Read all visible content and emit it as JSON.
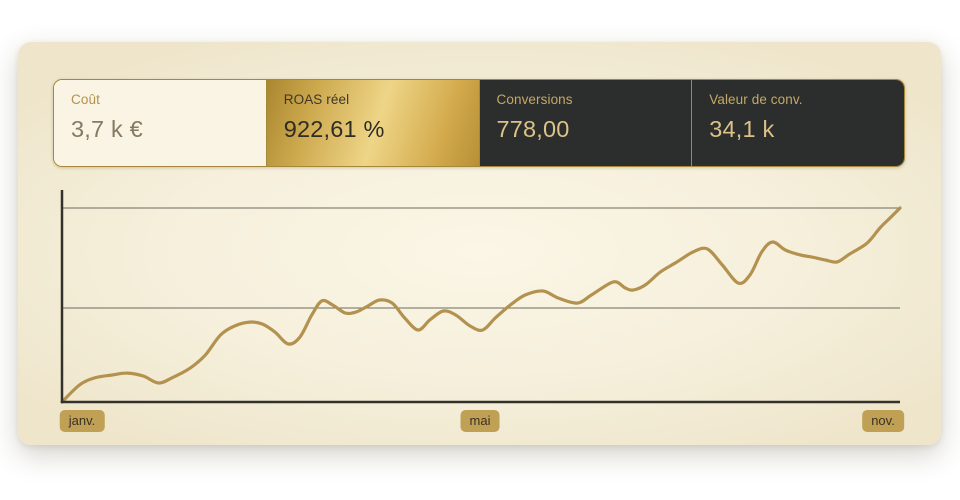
{
  "theme": {
    "panel_bg": "#f5efdb",
    "accent_gold": "#bfa055",
    "gold_border": "#a58839",
    "dark_card_bg": "#2b2e2c",
    "line_color": "#b3914e",
    "axis_color": "#32322b",
    "gridline_color": "#6b6b60"
  },
  "scorecards": [
    {
      "label": "Coût",
      "value": "3,7 k €",
      "variant": "cream"
    },
    {
      "label": "ROAS réel",
      "value": "922,61 %",
      "variant": "gold"
    },
    {
      "label": "Conversions",
      "value": "778,00",
      "variant": "dark"
    },
    {
      "label": "Valeur de conv.",
      "value": "34,1 k",
      "variant": "dark"
    }
  ],
  "chart_data": {
    "type": "line",
    "title": "",
    "xlabel": "",
    "ylabel": "",
    "x_tick_labels": [
      "janv.",
      "mai",
      "nov."
    ],
    "ylim": [
      0,
      100
    ],
    "grid": "horizontal",
    "legend": "none",
    "series": [
      {
        "name": "ROAS réel",
        "points": [
          [
            0,
            0
          ],
          [
            2.1,
            8.8
          ],
          [
            3.9,
            12.4
          ],
          [
            6,
            13.9
          ],
          [
            7.8,
            14.9
          ],
          [
            9.7,
            13.4
          ],
          [
            11.5,
            9.8
          ],
          [
            13.1,
            12.4
          ],
          [
            15.3,
            17.5
          ],
          [
            17.1,
            24.2
          ],
          [
            18.9,
            34.5
          ],
          [
            20.6,
            39.2
          ],
          [
            22.4,
            41.2
          ],
          [
            23.9,
            40.2
          ],
          [
            25.4,
            36.1
          ],
          [
            27,
            29.9
          ],
          [
            28.4,
            33.5
          ],
          [
            29.8,
            44.8
          ],
          [
            31,
            52.1
          ],
          [
            32.3,
            50
          ],
          [
            33.8,
            45.9
          ],
          [
            35.1,
            46.4
          ],
          [
            36.5,
            49.5
          ],
          [
            37.9,
            52.6
          ],
          [
            39.4,
            51
          ],
          [
            40.9,
            43.3
          ],
          [
            42.5,
            37.1
          ],
          [
            43.9,
            42.3
          ],
          [
            45.5,
            46.9
          ],
          [
            47,
            44.8
          ],
          [
            48.7,
            39.2
          ],
          [
            50.2,
            37.1
          ],
          [
            51.7,
            43.3
          ],
          [
            53.5,
            50
          ],
          [
            55.3,
            55.2
          ],
          [
            57.4,
            57.2
          ],
          [
            59.2,
            53.6
          ],
          [
            61.5,
            51
          ],
          [
            63.2,
            55.2
          ],
          [
            65.8,
            61.9
          ],
          [
            67.2,
            58.8
          ],
          [
            68.1,
            57.7
          ],
          [
            69.6,
            60.3
          ],
          [
            71.4,
            67
          ],
          [
            73.4,
            72.2
          ],
          [
            75.3,
            77.3
          ],
          [
            77,
            78.9
          ],
          [
            78.8,
            70.6
          ],
          [
            80.7,
            61.3
          ],
          [
            82.1,
            65.5
          ],
          [
            83.5,
            77.3
          ],
          [
            84.8,
            82.5
          ],
          [
            86.3,
            78.4
          ],
          [
            88.1,
            75.8
          ],
          [
            89.5,
            74.7
          ],
          [
            91.1,
            73.2
          ],
          [
            92.5,
            72.2
          ],
          [
            94,
            76.3
          ],
          [
            96.1,
            82
          ],
          [
            97.6,
            89.7
          ],
          [
            98.8,
            94.8
          ],
          [
            100,
            100
          ]
        ]
      }
    ]
  }
}
